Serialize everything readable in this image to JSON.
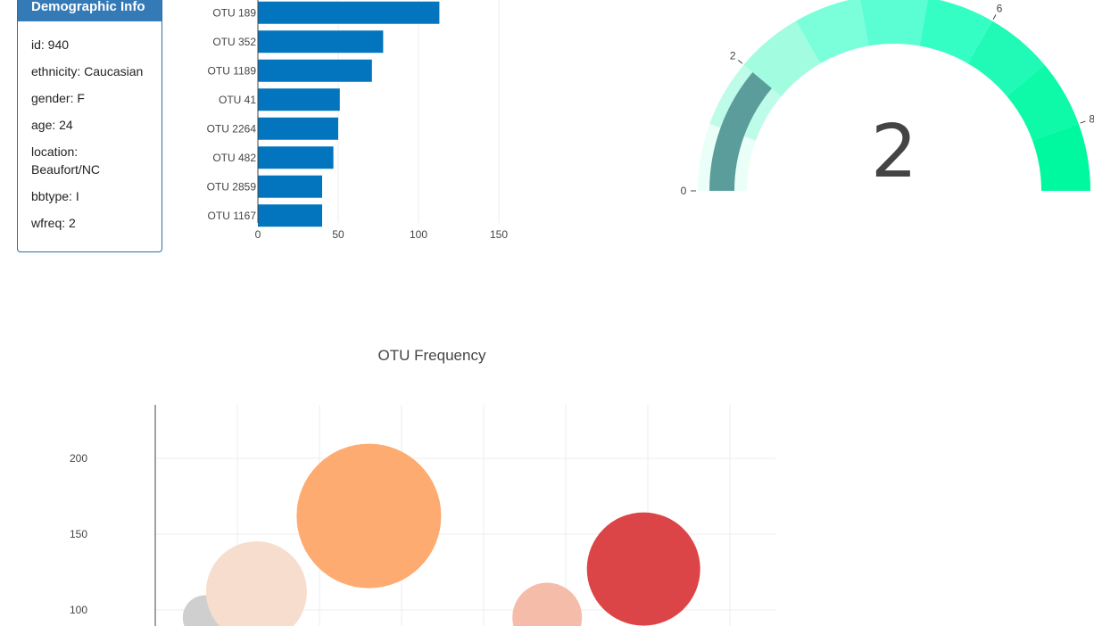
{
  "panel": {
    "heading": "Demographic Info",
    "rows": [
      {
        "text": "id: 940"
      },
      {
        "text": "ethnicity: Caucasian"
      },
      {
        "text": "gender: F"
      },
      {
        "text": "age: 24"
      },
      {
        "text": "location: Beaufort/NC"
      },
      {
        "text": "bbtype: I"
      },
      {
        "text": "wfreq: 2"
      }
    ]
  },
  "chart_data": [
    {
      "type": "bar",
      "orientation": "horizontal",
      "categories": [
        "OTU 189",
        "OTU 352",
        "OTU 1189",
        "OTU 41",
        "OTU 2264",
        "OTU 482",
        "OTU 2859",
        "OTU 1167"
      ],
      "values": [
        113,
        78,
        71,
        51,
        50,
        47,
        40,
        40
      ],
      "xlim": [
        0,
        175
      ],
      "x_ticks": [
        "0",
        "50",
        "100",
        "150"
      ],
      "color": "#0275be",
      "grid": true
    },
    {
      "type": "gauge",
      "value": 2,
      "value_label": "2",
      "range": [
        0,
        9
      ],
      "tick_labels": [
        "0",
        "2",
        "6",
        "8"
      ],
      "steps_colors": [
        "#eafff7",
        "#befbe8",
        "#a1fce0",
        "#7affda",
        "#5bfdd2",
        "#35fec5",
        "#21f9b7",
        "#0ef9a8",
        "#00f89e"
      ],
      "bar_color": "#5a9d9b"
    },
    {
      "type": "scatter",
      "title": "OTU Frequency",
      "y_ticks": [
        "100",
        "150",
        "200"
      ],
      "grid": true,
      "points": [
        {
          "x": 130,
          "y": 95,
          "size": 50,
          "color": "#cfcfcf"
        },
        {
          "x": 450,
          "y": 112,
          "size": 113,
          "color": "#f6ddcd"
        },
        {
          "x": 1150,
          "y": 162,
          "size": 162,
          "color": "#fdab70"
        },
        {
          "x": 2260,
          "y": 95,
          "size": 78,
          "color": "#f5bcaa"
        },
        {
          "x": 2860,
          "y": 127,
          "size": 127,
          "color": "#dc4547"
        }
      ]
    }
  ]
}
